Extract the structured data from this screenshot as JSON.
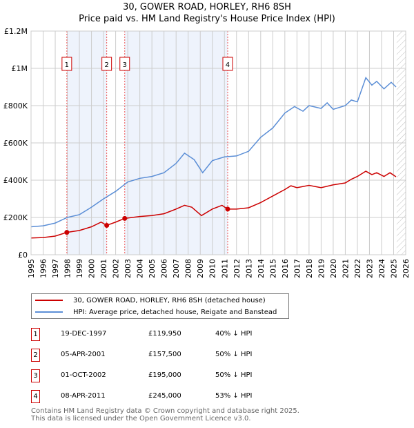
{
  "chart_data": {
    "type": "line",
    "title": "30, GOWER ROAD, HORLEY, RH6 8SH",
    "subtitle": "Price paid vs. HM Land Registry's House Price Index (HPI)",
    "xlim": [
      1995,
      2026
    ],
    "ylim": [
      0,
      1200000
    ],
    "xticks": [
      "1995",
      "1996",
      "1997",
      "1998",
      "1999",
      "2000",
      "2001",
      "2002",
      "2003",
      "2004",
      "2005",
      "2006",
      "2007",
      "2008",
      "2009",
      "2010",
      "2011",
      "2012",
      "2013",
      "2014",
      "2015",
      "2016",
      "2017",
      "2018",
      "2019",
      "2020",
      "2021",
      "2022",
      "2023",
      "2024",
      "2025",
      "2026"
    ],
    "yticks": [
      {
        "v": 0,
        "label": "£0"
      },
      {
        "v": 200000,
        "label": "£200K"
      },
      {
        "v": 400000,
        "label": "£400K"
      },
      {
        "v": 600000,
        "label": "£600K"
      },
      {
        "v": 800000,
        "label": "£800K"
      },
      {
        "v": 1000000,
        "label": "£1M"
      },
      {
        "v": 1200000,
        "label": "£1.2M"
      }
    ],
    "grid": true,
    "series": [
      {
        "name": "30, GOWER ROAD, HORLEY, RH6 8SH (detached house)",
        "color": "#cc0000",
        "points": [
          [
            1995,
            90000
          ],
          [
            1996,
            92000
          ],
          [
            1997,
            100000
          ],
          [
            1997.96,
            119950
          ],
          [
            1999,
            130000
          ],
          [
            2000,
            150000
          ],
          [
            2000.8,
            175000
          ],
          [
            2001.26,
            157500
          ],
          [
            2002,
            175000
          ],
          [
            2002.75,
            195000
          ],
          [
            2004,
            205000
          ],
          [
            2005,
            210000
          ],
          [
            2006,
            220000
          ],
          [
            2007,
            245000
          ],
          [
            2007.7,
            265000
          ],
          [
            2008.3,
            255000
          ],
          [
            2009.1,
            210000
          ],
          [
            2010,
            245000
          ],
          [
            2010.8,
            265000
          ],
          [
            2011.27,
            245000
          ],
          [
            2012,
            245000
          ],
          [
            2013,
            252000
          ],
          [
            2014,
            280000
          ],
          [
            2015,
            315000
          ],
          [
            2016,
            350000
          ],
          [
            2016.5,
            370000
          ],
          [
            2017,
            360000
          ],
          [
            2018,
            372000
          ],
          [
            2019,
            360000
          ],
          [
            2020,
            375000
          ],
          [
            2021,
            385000
          ],
          [
            2021.5,
            405000
          ],
          [
            2022,
            420000
          ],
          [
            2022.7,
            448000
          ],
          [
            2023.2,
            430000
          ],
          [
            2023.6,
            440000
          ],
          [
            2024.2,
            420000
          ],
          [
            2024.7,
            440000
          ],
          [
            2025.2,
            418000
          ]
        ]
      },
      {
        "name": "HPI: Average price, detached house, Reigate and Banstead",
        "color": "#5b8ed6",
        "points": [
          [
            1995,
            150000
          ],
          [
            1996,
            155000
          ],
          [
            1997,
            170000
          ],
          [
            1998,
            200000
          ],
          [
            1999,
            215000
          ],
          [
            2000,
            255000
          ],
          [
            2001,
            300000
          ],
          [
            2002,
            340000
          ],
          [
            2003,
            390000
          ],
          [
            2004,
            410000
          ],
          [
            2005,
            420000
          ],
          [
            2006,
            440000
          ],
          [
            2007,
            490000
          ],
          [
            2007.7,
            545000
          ],
          [
            2008.5,
            510000
          ],
          [
            2009.2,
            440000
          ],
          [
            2010,
            505000
          ],
          [
            2011,
            525000
          ],
          [
            2012,
            530000
          ],
          [
            2013,
            555000
          ],
          [
            2014,
            630000
          ],
          [
            2015,
            680000
          ],
          [
            2016,
            760000
          ],
          [
            2016.8,
            795000
          ],
          [
            2017.5,
            770000
          ],
          [
            2018,
            800000
          ],
          [
            2019,
            785000
          ],
          [
            2019.5,
            815000
          ],
          [
            2020,
            780000
          ],
          [
            2021,
            800000
          ],
          [
            2021.5,
            830000
          ],
          [
            2022,
            820000
          ],
          [
            2022.7,
            950000
          ],
          [
            2023.2,
            910000
          ],
          [
            2023.6,
            930000
          ],
          [
            2024.2,
            890000
          ],
          [
            2024.8,
            925000
          ],
          [
            2025.2,
            900000
          ]
        ]
      }
    ],
    "sales": [
      {
        "n": "1",
        "x": 1997.96,
        "y": 119950
      },
      {
        "n": "2",
        "x": 2001.26,
        "y": 157500
      },
      {
        "n": "3",
        "x": 2002.75,
        "y": 195000
      },
      {
        "n": "4",
        "x": 2011.27,
        "y": 245000
      }
    ],
    "shaded": [
      [
        1997.96,
        2001.26
      ],
      [
        2002.75,
        2011.27
      ]
    ],
    "forecast_from": 2025.25,
    "legend": [
      "30, GOWER ROAD, HORLEY, RH6 8SH (detached house)",
      "HPI: Average price, detached house, Reigate and Banstead"
    ]
  },
  "table": [
    {
      "n": "1",
      "date": "19-DEC-1997",
      "price": "£119,950",
      "hpi": "40% ↓ HPI"
    },
    {
      "n": "2",
      "date": "05-APR-2001",
      "price": "£157,500",
      "hpi": "50% ↓ HPI"
    },
    {
      "n": "3",
      "date": "01-OCT-2002",
      "price": "£195,000",
      "hpi": "50% ↓ HPI"
    },
    {
      "n": "4",
      "date": "08-APR-2011",
      "price": "£245,000",
      "hpi": "53% ↓ HPI"
    }
  ],
  "footer": [
    "Contains HM Land Registry data © Crown copyright and database right 2025.",
    "This data is licensed under the Open Government Licence v3.0."
  ]
}
